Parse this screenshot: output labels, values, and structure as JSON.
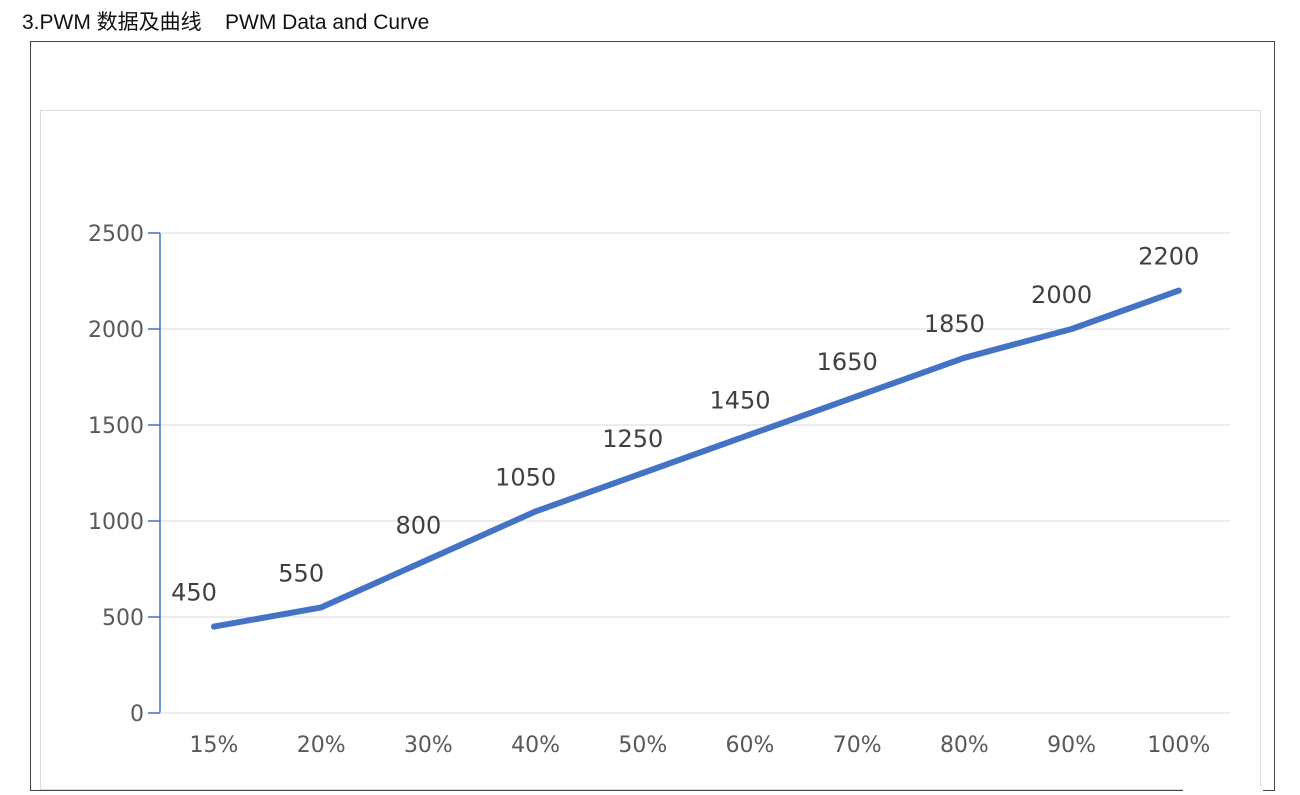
{
  "heading": {
    "text": "3.PWM 数据及曲线    PWM Data and Curve"
  },
  "colors": {
    "line": "#4472C4",
    "axis": "#4472C4",
    "grid": "#d9d9d9",
    "tick_text": "#595959",
    "label_text": "#404040"
  },
  "chart_data": {
    "type": "line",
    "categories": [
      "15%",
      "20%",
      "30%",
      "40%",
      "50%",
      "60%",
      "70%",
      "80%",
      "90%",
      "100%"
    ],
    "series": [
      {
        "values": [
          450,
          550,
          800,
          1050,
          1250,
          1450,
          1650,
          1850,
          2000,
          2200
        ]
      }
    ],
    "data_labels": [
      "450",
      "550",
      "800",
      "1050",
      "1250",
      "1450",
      "1650",
      "1850",
      "2000",
      "2200"
    ],
    "y_ticks": [
      "0",
      "500",
      "1000",
      "1500",
      "2000",
      "2500"
    ],
    "ylim": [
      0,
      2500
    ],
    "grid": true,
    "legend": "none"
  }
}
